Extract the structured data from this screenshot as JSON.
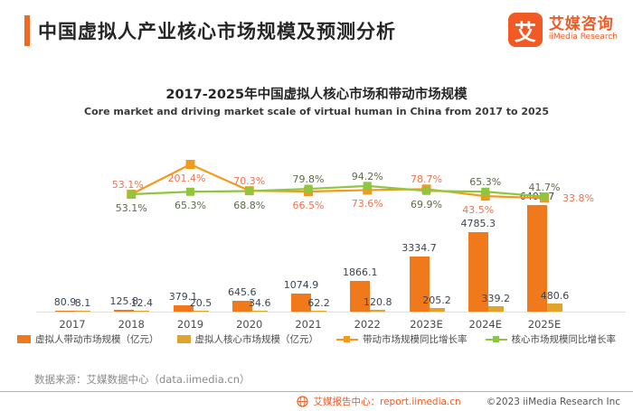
{
  "header": {
    "title": "中国虚拟人产业核心市场规模及预测分析",
    "logo": {
      "icon_text": "艾",
      "name": "艾媒咨询",
      "subname": "iiMedia Research"
    }
  },
  "chart_data": {
    "type": "bar",
    "title": "2017-2025年中国虚拟人核心市场和带动市场规模",
    "subtitle": "Core market and driving market scale of virtual human in China from 2017 to 2025",
    "categories": [
      "2017",
      "2018",
      "2019",
      "2020",
      "2021",
      "2022",
      "2023E",
      "2024E",
      "2025E"
    ],
    "series": [
      {
        "name": "虚拟人带动市场规模（亿元）",
        "kind": "bar",
        "color": "#F0791C",
        "values": [
          80.9,
          125.8,
          379.1,
          645.6,
          1074.9,
          1866.1,
          3334.7,
          4785.3,
          6402.7
        ]
      },
      {
        "name": "虚拟人核心市场规模（亿元）",
        "kind": "bar",
        "color": "#E0A42A",
        "values": [
          8.1,
          12.4,
          20.5,
          34.6,
          62.2,
          120.8,
          205.2,
          339.2,
          480.6
        ]
      },
      {
        "name": "带动市场规模同比增长率",
        "kind": "line",
        "color": "#F39A1E",
        "label_color": "#F2734D",
        "unit": "%",
        "values": [
          null,
          53.1,
          201.4,
          70.3,
          66.5,
          73.6,
          78.7,
          43.5,
          33.8
        ]
      },
      {
        "name": "核心市场规模同比增长率",
        "kind": "line",
        "color": "#8EC63F",
        "label_color": "#5d6a4c",
        "unit": "%",
        "values": [
          null,
          53.1,
          65.3,
          68.8,
          79.8,
          94.2,
          69.9,
          65.3,
          41.7
        ]
      }
    ],
    "grid": false,
    "legend_position": "bottom",
    "label_layout": {
      "driving": [
        {
          "side": "above",
          "dx": -4
        },
        {
          "side": "below",
          "dx": -4
        },
        {
          "side": "above",
          "dx": 0
        },
        {
          "side": "below",
          "dx": 0
        },
        {
          "side": "below",
          "dx": 0
        },
        {
          "side": "above",
          "dx": 0
        },
        {
          "side": "below",
          "dx": -8
        },
        {
          "side": "right",
          "dx": 22
        }
      ],
      "core": [
        {
          "side": "below",
          "dx": 0
        },
        {
          "side": "below",
          "dx": 0
        },
        {
          "side": "below",
          "dx": 0
        },
        {
          "side": "above",
          "dx": 0
        },
        {
          "side": "above",
          "dx": 0
        },
        {
          "side": "below",
          "dx": 0
        },
        {
          "side": "above",
          "dx": 0
        },
        {
          "side": "above",
          "dx": 0
        }
      ]
    }
  },
  "footer": {
    "source": "数据来源：艾媒数据中心（data.iimedia.cn）",
    "report_center": "艾媒报告中心：report.iimedia.cn",
    "copyright": "©2023  iiMedia Research  Inc"
  }
}
